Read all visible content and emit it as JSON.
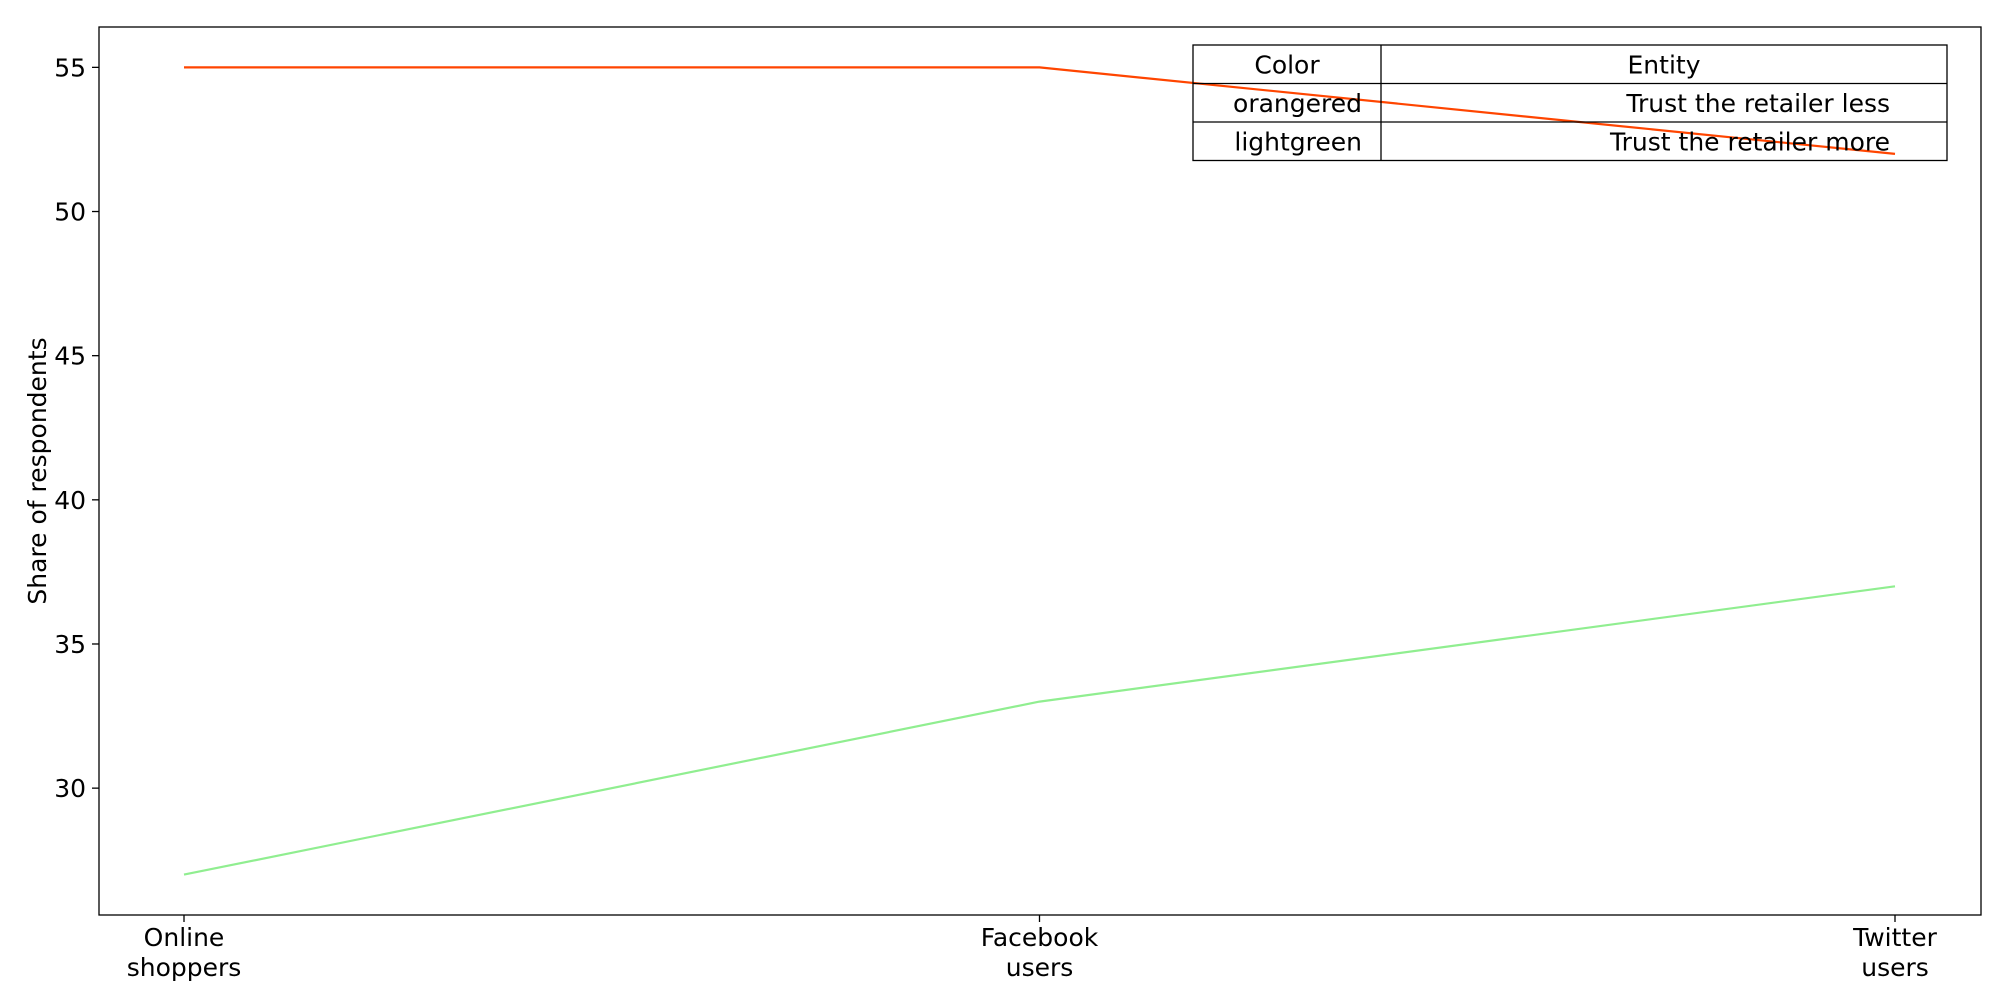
{
  "chart_data": {
    "type": "line",
    "title": "",
    "xlabel": "",
    "ylabel": "Share of respondents",
    "categories": [
      [
        "Online",
        "shoppers"
      ],
      [
        "Facebook",
        "users"
      ],
      [
        "Twitter",
        "users"
      ]
    ],
    "ylim": [
      25.6,
      56.4
    ],
    "yticks": [
      30,
      35,
      40,
      45,
      50,
      55
    ],
    "grid": false,
    "series": [
      {
        "name": "Trust the retailer less",
        "color": "#ff4500",
        "values": [
          55,
          55,
          52
        ]
      },
      {
        "name": "Trust the retailer more",
        "color": "#90ee90",
        "values": [
          27,
          33,
          37
        ]
      }
    ],
    "legend": {
      "placement": "top-right",
      "header": {
        "color": "Color",
        "entity": "Entity"
      },
      "rows": [
        {
          "color": "orangered",
          "entity": "Trust the retailer less"
        },
        {
          "color": "lightgreen",
          "entity": "Trust the retailer more"
        }
      ]
    }
  }
}
